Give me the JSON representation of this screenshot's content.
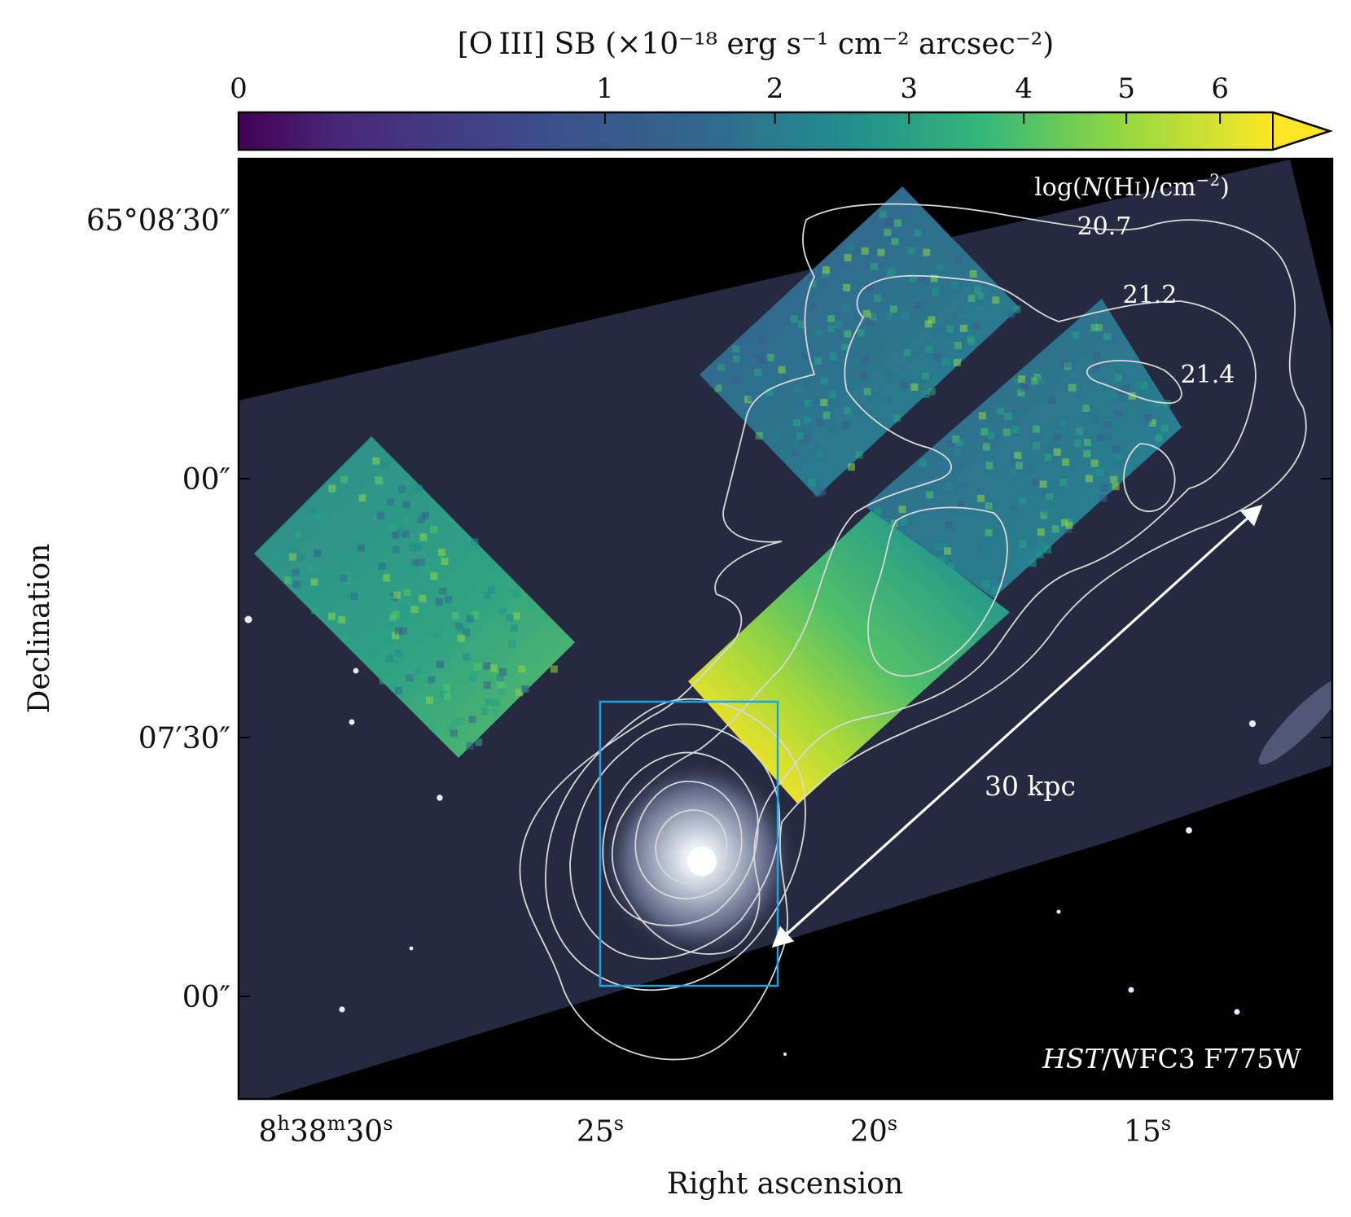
{
  "colorbar": {
    "label": "[O III] SB (×10⁻¹⁸ erg s⁻¹ cm⁻² arcsec⁻²)",
    "ticks": [
      "0",
      "1",
      "2",
      "3",
      "4",
      "5",
      "6"
    ],
    "tick_values": [
      0,
      1,
      2,
      3,
      4,
      5,
      6
    ],
    "extend": "max",
    "colormap": [
      "#440154",
      "#3b528b",
      "#21918c",
      "#5ec962",
      "#fde725"
    ]
  },
  "axes": {
    "xlabel": "Right ascension",
    "ylabel": "Declination",
    "x_ticks": [
      {
        "h": "8",
        "m": "38",
        "s": "30"
      },
      {
        "s": "25"
      },
      {
        "s": "20"
      },
      {
        "s": "15"
      }
    ],
    "y_ticks": [
      "65°08′30″",
      "00″",
      "07′30″",
      "00″"
    ]
  },
  "contours": {
    "title": "log(N(HI)/cm⁻²)",
    "levels": [
      "20.7",
      "21.2",
      "21.4"
    ],
    "color": "#d8d8d8"
  },
  "scalebar": {
    "label": "30 kpc"
  },
  "image_label": {
    "telescope": "HST",
    "rest": "/WFC3 F775W"
  },
  "colors": {
    "sky": "#262a40",
    "box": "#1aa3e6",
    "arrow": "#ffffff"
  }
}
